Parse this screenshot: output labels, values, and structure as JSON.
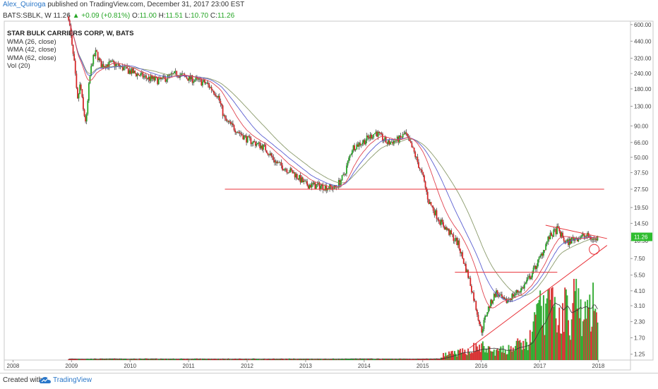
{
  "header": {
    "author": "Alex_Quiroga",
    "published_text": "published on TradingView.com, December 31, 2017 23:00 EST"
  },
  "quote": {
    "symbol": "BATS:SBLK, W",
    "last": "11.26",
    "change": "+0.09 (+0.81%)",
    "open_label": "O:",
    "open": "11.00",
    "high_label": "H:",
    "high": "11.51",
    "low_label": "L:",
    "low": "10.70",
    "close_label": "C:",
    "close": "11.26"
  },
  "legend": {
    "title": "STAR BULK CARRIERS CORP, W, BATS",
    "items": [
      "WMA (26, close)",
      "WMA (42, close)",
      "WMA (62, close)",
      "Vol (20)"
    ]
  },
  "footer": {
    "created_with": "Created with",
    "brand": "TradingView"
  },
  "colors": {
    "up": "#26a626",
    "down": "#d62728",
    "wma26": "#e0434f",
    "wma42": "#5b5fd1",
    "wma62": "#8a9a6b",
    "line": "#e8333a",
    "price_tag": "#2ebd2e"
  },
  "chart_data": {
    "type": "candlestick",
    "title": "STAR BULK CARRIERS CORP, W, BATS",
    "y_scale": "log",
    "y_ticks": [
      "600.00",
      "440.00",
      "320.00",
      "240.00",
      "180.00",
      "130.00",
      "90.00",
      "66.00",
      "50.00",
      "37.50",
      "27.50",
      "19.50",
      "14.50",
      "10.50",
      "7.50",
      "5.50",
      "4.10",
      "3.10",
      "2.30",
      "1.70",
      "1.25"
    ],
    "x_ticks": [
      "2008",
      "2009",
      "2010",
      "2011",
      "2012",
      "2013",
      "2014",
      "2015",
      "2016",
      "2017",
      "2018"
    ],
    "last_price": "11.26",
    "price_path": [
      [
        2008.95,
        700
      ],
      [
        2009.0,
        420
      ],
      [
        2009.05,
        280
      ],
      [
        2009.1,
        140
      ],
      [
        2009.15,
        200
      ],
      [
        2009.2,
        120
      ],
      [
        2009.25,
        95
      ],
      [
        2009.3,
        200
      ],
      [
        2009.35,
        300
      ],
      [
        2009.42,
        360
      ],
      [
        2009.5,
        280
      ],
      [
        2009.7,
        290
      ],
      [
        2010.0,
        250
      ],
      [
        2010.3,
        220
      ],
      [
        2010.5,
        210
      ],
      [
        2010.8,
        240
      ],
      [
        2011.0,
        220
      ],
      [
        2011.3,
        200
      ],
      [
        2011.5,
        160
      ],
      [
        2011.62,
        100
      ],
      [
        2011.8,
        85
      ],
      [
        2012.0,
        70
      ],
      [
        2012.3,
        60
      ],
      [
        2012.5,
        45
      ],
      [
        2012.8,
        37
      ],
      [
        2013.0,
        30
      ],
      [
        2013.3,
        29
      ],
      [
        2013.5,
        28
      ],
      [
        2013.65,
        35
      ],
      [
        2013.8,
        60
      ],
      [
        2014.0,
        68
      ],
      [
        2014.2,
        80
      ],
      [
        2014.4,
        65
      ],
      [
        2014.6,
        70
      ],
      [
        2014.7,
        78
      ],
      [
        2014.85,
        55
      ],
      [
        2015.0,
        35
      ],
      [
        2015.1,
        22
      ],
      [
        2015.3,
        15
      ],
      [
        2015.6,
        10
      ],
      [
        2015.8,
        5
      ],
      [
        2015.95,
        2.5
      ],
      [
        2016.0,
        1.9
      ],
      [
        2016.1,
        2.8
      ],
      [
        2016.25,
        4
      ],
      [
        2016.4,
        3.3
      ],
      [
        2016.55,
        3.8
      ],
      [
        2016.7,
        4.3
      ],
      [
        2016.85,
        5.5
      ],
      [
        2017.0,
        7.5
      ],
      [
        2017.15,
        11
      ],
      [
        2017.3,
        13
      ],
      [
        2017.45,
        10
      ],
      [
        2017.6,
        11
      ],
      [
        2017.8,
        11.5
      ],
      [
        2017.95,
        10.6
      ],
      [
        2018.0,
        11.26
      ]
    ],
    "volume_path": [
      [
        2015.3,
        0.5
      ],
      [
        2015.5,
        0.7
      ],
      [
        2015.7,
        0.9
      ],
      [
        2015.9,
        1.4
      ],
      [
        2016.0,
        1.5
      ],
      [
        2016.2,
        0.9
      ],
      [
        2016.4,
        1.1
      ],
      [
        2016.6,
        1.6
      ],
      [
        2016.8,
        1.8
      ],
      [
        2016.95,
        4.5
      ],
      [
        2017.0,
        7.0
      ],
      [
        2017.05,
        5.0
      ],
      [
        2017.15,
        6.5
      ],
      [
        2017.25,
        5.0
      ],
      [
        2017.35,
        4.5
      ],
      [
        2017.45,
        6.0
      ],
      [
        2017.55,
        4.0
      ],
      [
        2017.6,
        8.5
      ],
      [
        2017.7,
        5.0
      ],
      [
        2017.8,
        4.5
      ],
      [
        2017.9,
        6.5
      ],
      [
        2018.0,
        2.5
      ]
    ],
    "annotations": [
      {
        "type": "horizontal",
        "y": 27.5,
        "x1": 2011.62,
        "x2": 2018.1
      },
      {
        "type": "horizontal",
        "y": 5.8,
        "x1": 2015.55,
        "x2": 2017.3
      },
      {
        "type": "trend",
        "from": [
          2015.8,
          1.4
        ],
        "to": [
          2018.15,
          9.6
        ]
      },
      {
        "type": "trend",
        "from": [
          2017.1,
          14.0
        ],
        "to": [
          2018.15,
          10.9
        ]
      },
      {
        "type": "circle",
        "center": [
          2017.93,
          8.9
        ]
      }
    ]
  }
}
